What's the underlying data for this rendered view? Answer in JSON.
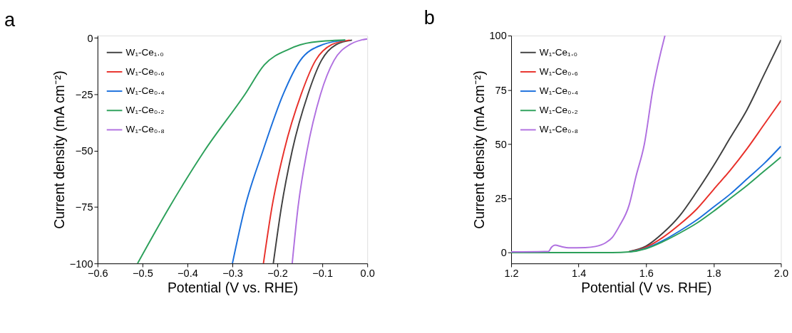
{
  "chart_data": [
    {
      "type": "line",
      "title": "a",
      "xlabel": "Potential (V vs. RHE)",
      "ylabel": "Current density (mA cm⁻²)",
      "xlim": [
        -0.6,
        0.0
      ],
      "xticks": [
        -0.6,
        -0.5,
        -0.4,
        -0.3,
        -0.2,
        -0.1,
        {
          "value": 0.0,
          "label": "0.0"
        }
      ],
      "ylim": [
        -100,
        1
      ],
      "yticks": [
        -100,
        -75,
        -50,
        -25,
        0
      ],
      "grid": false,
      "legend": "top left",
      "series": [
        {
          "name": "W₁-Ce₁.₀",
          "color": "#404040",
          "x": [
            -0.209,
            -0.191,
            -0.167,
            -0.132,
            -0.102,
            -0.069,
            -0.034
          ],
          "values": [
            -100,
            -75,
            -50,
            -25,
            -10,
            -3,
            -1
          ]
        },
        {
          "name": "W₁-Ce₀.₆",
          "color": "#e8302a",
          "x": [
            -0.231,
            -0.212,
            -0.185,
            -0.147,
            -0.115,
            -0.079,
            -0.039
          ],
          "values": [
            -100,
            -75,
            -50,
            -25,
            -10,
            -3,
            -1
          ]
        },
        {
          "name": "W₁-Ce₀.₄",
          "color": "#1a6fdc",
          "x": [
            -0.3,
            -0.272,
            -0.232,
            -0.187,
            -0.149,
            -0.099,
            -0.049
          ],
          "values": [
            -100,
            -75,
            -50,
            -25,
            -10,
            -3,
            -1
          ]
        },
        {
          "name": "W₁-Ce₀.₂",
          "color": "#2ca05a",
          "x": [
            -0.511,
            -0.44,
            -0.362,
            -0.272,
            -0.229,
            -0.174,
            -0.124,
            -0.049
          ],
          "values": [
            -100,
            -75,
            -50,
            -25,
            -12,
            -5,
            -2,
            -1
          ]
        },
        {
          "name": "W₁-Ce₀.₈",
          "color": "#b070e0",
          "x": [
            -0.167,
            -0.154,
            -0.134,
            -0.104,
            -0.074,
            -0.039,
            -0.014,
            0.0
          ],
          "values": [
            -100,
            -75,
            -50,
            -25,
            -10,
            -3,
            -1,
            -0.5
          ]
        }
      ]
    },
    {
      "type": "line",
      "title": "b",
      "xlabel": "Potential (V vs. RHE)",
      "ylabel": "Current density (mA cm⁻²)",
      "xlim": [
        1.2,
        2.0
      ],
      "xticks": [
        1.2,
        1.4,
        1.6,
        1.8,
        {
          "value": 2.0,
          "label": "2.0"
        }
      ],
      "ylim": [
        -5,
        100
      ],
      "yticks": [
        0,
        25,
        50,
        75,
        100
      ],
      "grid": false,
      "legend": "top left",
      "series": [
        {
          "name": "W₁-Ce₁.₀",
          "color": "#404040",
          "x": [
            1.55,
            1.6,
            1.65,
            1.7,
            1.75,
            1.8,
            1.85,
            1.9,
            1.95,
            2.0
          ],
          "values": [
            0.5,
            3,
            9,
            17,
            28,
            40,
            53,
            66,
            82,
            98
          ]
        },
        {
          "name": "W₁-Ce₀.₆",
          "color": "#e8302a",
          "x": [
            1.55,
            1.6,
            1.65,
            1.7,
            1.75,
            1.8,
            1.85,
            1.9,
            1.95,
            2.0
          ],
          "values": [
            0.4,
            2.5,
            7,
            13,
            20,
            29,
            38,
            48,
            59,
            70
          ]
        },
        {
          "name": "W₁-Ce₀.₄",
          "color": "#1a6fdc",
          "x": [
            1.55,
            1.6,
            1.65,
            1.7,
            1.75,
            1.8,
            1.85,
            1.9,
            1.95,
            2.0
          ],
          "values": [
            0.3,
            2,
            5.5,
            10,
            15,
            21,
            27,
            34,
            41,
            49
          ]
        },
        {
          "name": "W₁-Ce₀.₂",
          "color": "#2ca05a",
          "x": [
            1.2,
            1.5,
            1.55,
            1.6,
            1.65,
            1.7,
            1.75,
            1.8,
            1.85,
            1.9,
            1.95,
            2.0
          ],
          "values": [
            0,
            0,
            0.3,
            1.8,
            5,
            9,
            13.5,
            19,
            25,
            31,
            37.5,
            44
          ]
        },
        {
          "name": "W₁-Ce₀.₈",
          "color": "#b070e0",
          "x": [
            1.2,
            1.31,
            1.32,
            1.33,
            1.35,
            1.37,
            1.42,
            1.45,
            1.48,
            1.5,
            1.52,
            1.55,
            1.57,
            1.595,
            1.62,
            1.656
          ],
          "values": [
            0.3,
            0.5,
            2.5,
            3.4,
            2.7,
            2.2,
            2.3,
            2.8,
            4.5,
            7,
            12,
            22,
            35,
            50,
            75,
            100
          ]
        }
      ]
    }
  ]
}
